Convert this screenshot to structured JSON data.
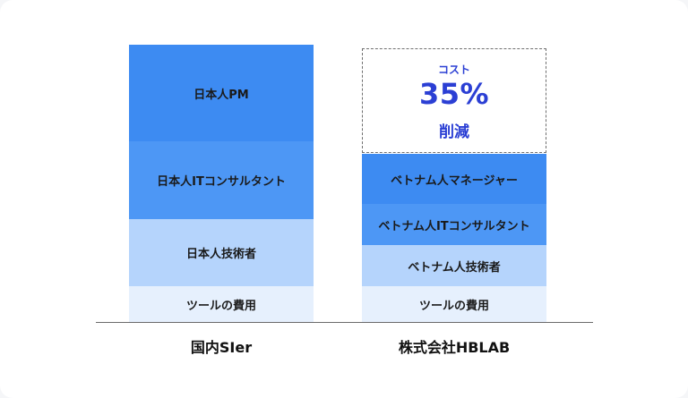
{
  "left_column": {
    "label": "国内SIer",
    "segments": [
      {
        "label": "日本人PM"
      },
      {
        "label": "日本人ITコンサルタント"
      },
      {
        "label": "日本人技術者"
      },
      {
        "label": "ツールの費用"
      }
    ]
  },
  "right_column": {
    "label": "株式会社HBLAB",
    "reduction": {
      "top": "コスト",
      "value": "35%",
      "bottom": "削減"
    },
    "segments": [
      {
        "label": "ベトナム人マネージャー"
      },
      {
        "label": "ベトナム人ITコンサルタント"
      },
      {
        "label": "ベトナム人技術者"
      },
      {
        "label": "ツールの費用"
      }
    ]
  },
  "colors": {
    "dark_blue": "#3d8bf2",
    "mid_blue": "#4d97f5",
    "light_blue": "#b5d4fc",
    "pale_blue": "#e6f0fd",
    "accent": "#2b3fd4"
  }
}
